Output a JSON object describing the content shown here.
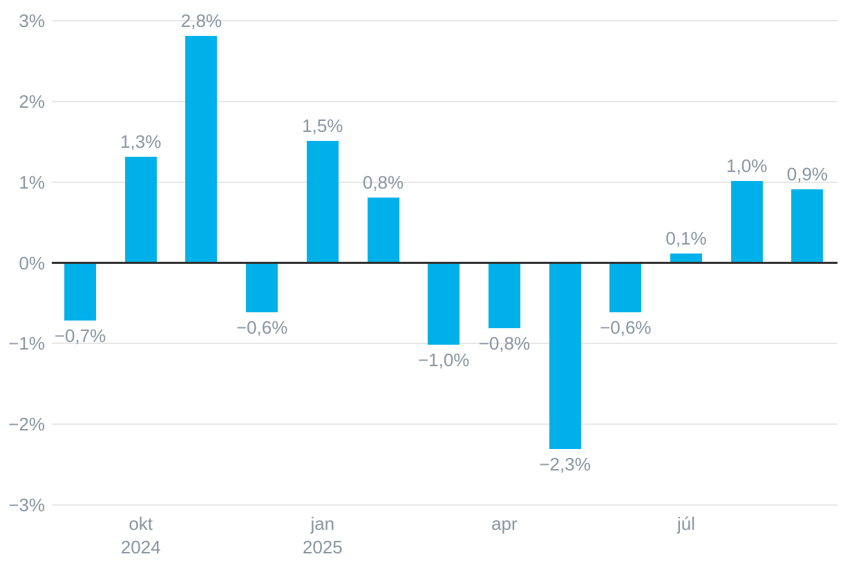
{
  "chart_data": {
    "type": "bar",
    "title": "",
    "xlabel": "",
    "ylabel": "",
    "ylim": [
      -3,
      3
    ],
    "grid": true,
    "legend": false,
    "values": [
      -0.7,
      1.3,
      2.8,
      -0.6,
      1.5,
      0.8,
      -1.0,
      -0.8,
      -2.3,
      -0.6,
      0.1,
      1.0,
      0.9
    ],
    "bar_labels": [
      "−0,7%",
      "1,3%",
      "2,8%",
      "−0,6%",
      "1,5%",
      "0,8%",
      "−1,0%",
      "−0,8%",
      "−2,3%",
      "−0,6%",
      "0,1%",
      "1,0%",
      "0,9%"
    ],
    "y_ticks": [
      {
        "value": 3,
        "label": "3%"
      },
      {
        "value": 2,
        "label": "2%"
      },
      {
        "value": 1,
        "label": "1%"
      },
      {
        "value": 0,
        "label": "0%"
      },
      {
        "value": -1,
        "label": "−1%"
      },
      {
        "value": -2,
        "label": "−2%"
      },
      {
        "value": -3,
        "label": "−3%"
      }
    ],
    "x_ticks": [
      {
        "bar_index": 1,
        "lines": [
          "okt",
          "2024"
        ]
      },
      {
        "bar_index": 4,
        "lines": [
          "jan",
          "2025"
        ]
      },
      {
        "bar_index": 7,
        "lines": [
          "apr"
        ]
      },
      {
        "bar_index": 10,
        "lines": [
          "júl"
        ]
      }
    ],
    "colors": {
      "bar": "#00b1e9",
      "grid": "#e7e7e7",
      "zero_line": "#303030",
      "text": "#8a96a1",
      "background": "#ffffff"
    }
  }
}
